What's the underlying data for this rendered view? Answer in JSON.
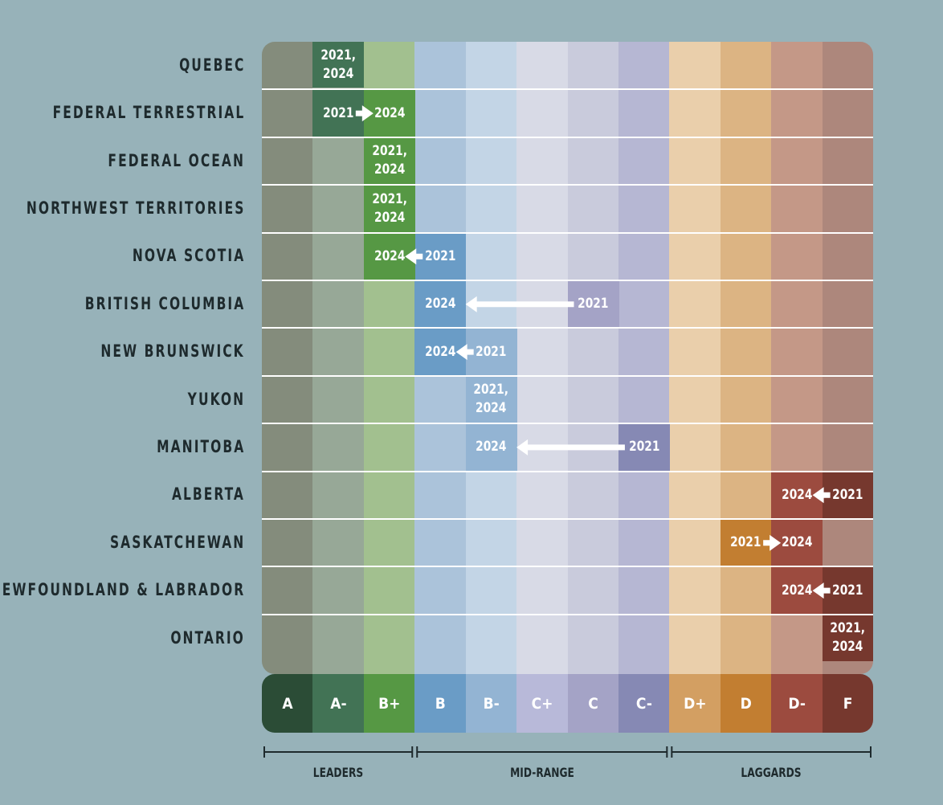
{
  "chart_data": {
    "type": "table",
    "grades": [
      "A",
      "A-",
      "B+",
      "B",
      "B-",
      "C+",
      "C",
      "C-",
      "D+",
      "D",
      "D-",
      "F"
    ],
    "grade_colors_strong": [
      "#2b4c36",
      "#427355",
      "#569844",
      "#6a9cc6",
      "#93b4d3",
      "#b8b9d9",
      "#a4a3c6",
      "#8689b4",
      "#d39f62",
      "#c27e31",
      "#9c4b3f",
      "#76382e"
    ],
    "grade_colors_light": [
      "#848c7c",
      "#97a897",
      "#a2c08f",
      "#abc3da",
      "#c3d5e6",
      "#d8dae6",
      "#c9cbdc",
      "#b6b7d3",
      "#eacfab",
      "#dcb483",
      "#c49887",
      "#ad877c"
    ],
    "groups": [
      {
        "label": "LEADERS",
        "from": "A",
        "to": "B+"
      },
      {
        "label": "MID-RANGE",
        "from": "B",
        "to": "C-"
      },
      {
        "label": "LAGGARDS",
        "from": "D+",
        "to": "F"
      }
    ],
    "rows": [
      {
        "jurisdiction": "QUEBEC",
        "grade_2021": "A-",
        "grade_2024": "A-",
        "text": "2021,\n2024"
      },
      {
        "jurisdiction": "FEDERAL TERRESTRIAL",
        "grade_2021": "A-",
        "grade_2024": "B+",
        "text_2021": "2021",
        "text_2024": "2024"
      },
      {
        "jurisdiction": "FEDERAL OCEAN",
        "grade_2021": "B+",
        "grade_2024": "B+",
        "text": "2021,\n2024"
      },
      {
        "jurisdiction": "NORTHWEST TERRITORIES",
        "grade_2021": "B+",
        "grade_2024": "B+",
        "text": "2021,\n2024"
      },
      {
        "jurisdiction": "NOVA SCOTIA",
        "grade_2021": "B",
        "grade_2024": "B+",
        "text_2021": "2021",
        "text_2024": "2024"
      },
      {
        "jurisdiction": "BRITISH COLUMBIA",
        "grade_2021": "C",
        "grade_2024": "B",
        "text_2021": "2021",
        "text_2024": "2024"
      },
      {
        "jurisdiction": "NEW BRUNSWICK",
        "grade_2021": "B-",
        "grade_2024": "B",
        "text_2021": "2021",
        "text_2024": "2024"
      },
      {
        "jurisdiction": "YUKON",
        "grade_2021": "B-",
        "grade_2024": "B-",
        "text": "2021,\n2024"
      },
      {
        "jurisdiction": "MANITOBA",
        "grade_2021": "C-",
        "grade_2024": "B-",
        "text_2021": "2021",
        "text_2024": "2024"
      },
      {
        "jurisdiction": "ALBERTA",
        "grade_2021": "F",
        "grade_2024": "D-",
        "text_2021": "2021",
        "text_2024": "2024"
      },
      {
        "jurisdiction": "SASKATCHEWAN",
        "grade_2021": "D",
        "grade_2024": "D-",
        "text_2021": "2021",
        "text_2024": "2024"
      },
      {
        "jurisdiction": "NEWFOUNDLAND & LABRADOR",
        "grade_2021": "F",
        "grade_2024": "D-",
        "text_2021": "2021",
        "text_2024": "2024"
      },
      {
        "jurisdiction": "ONTARIO",
        "grade_2021": "F",
        "grade_2024": "F",
        "text": "2021,\n2024"
      }
    ]
  }
}
